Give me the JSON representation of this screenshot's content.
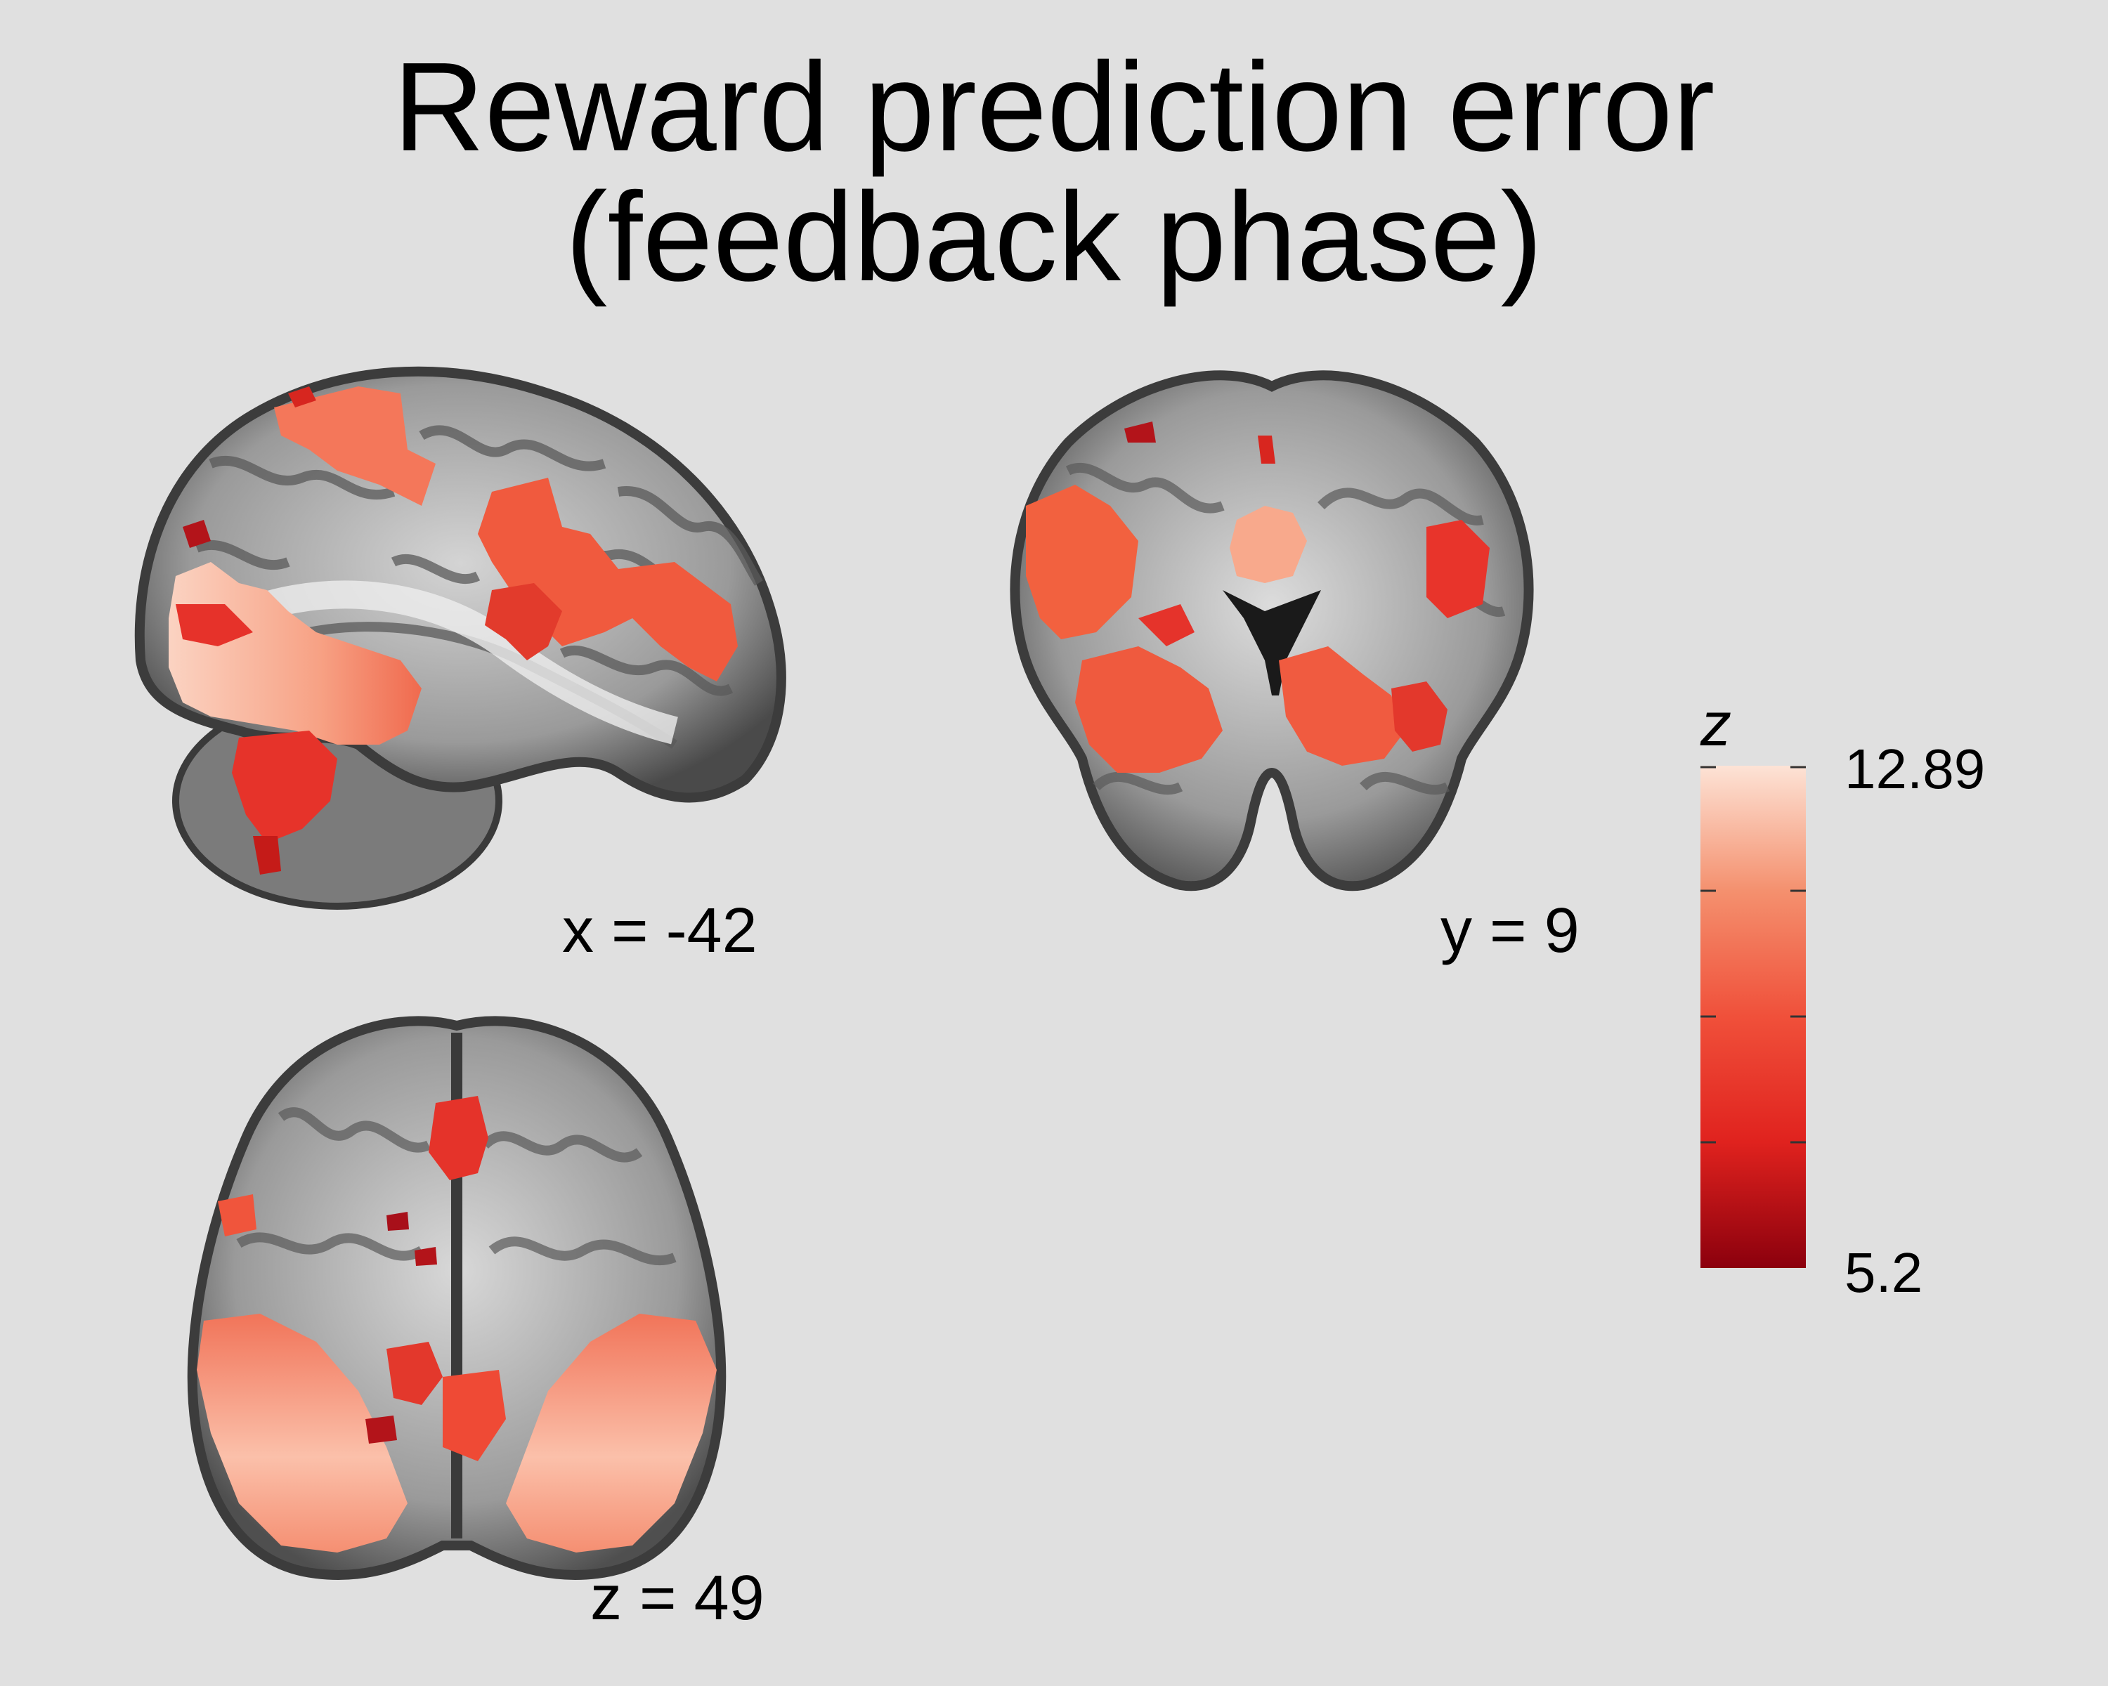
{
  "title": {
    "line1": "Reward prediction error",
    "line2": "(feedback phase)"
  },
  "slices": {
    "sagittal": {
      "label": "x = -42",
      "view": "sagittal"
    },
    "coronal": {
      "label": "y = 9",
      "view": "coronal"
    },
    "axial": {
      "label": "z = 49",
      "view": "axial"
    }
  },
  "colorbar": {
    "symbol": "z",
    "max_label": "12.89",
    "min_label": "5.2",
    "max_value": 12.89,
    "min_value": 5.2,
    "colors": {
      "low": "#8b000d",
      "mid_low": "#e0221e",
      "mid": "#f0503a",
      "mid_high": "#f4906e",
      "high": "#fde3d6"
    }
  }
}
